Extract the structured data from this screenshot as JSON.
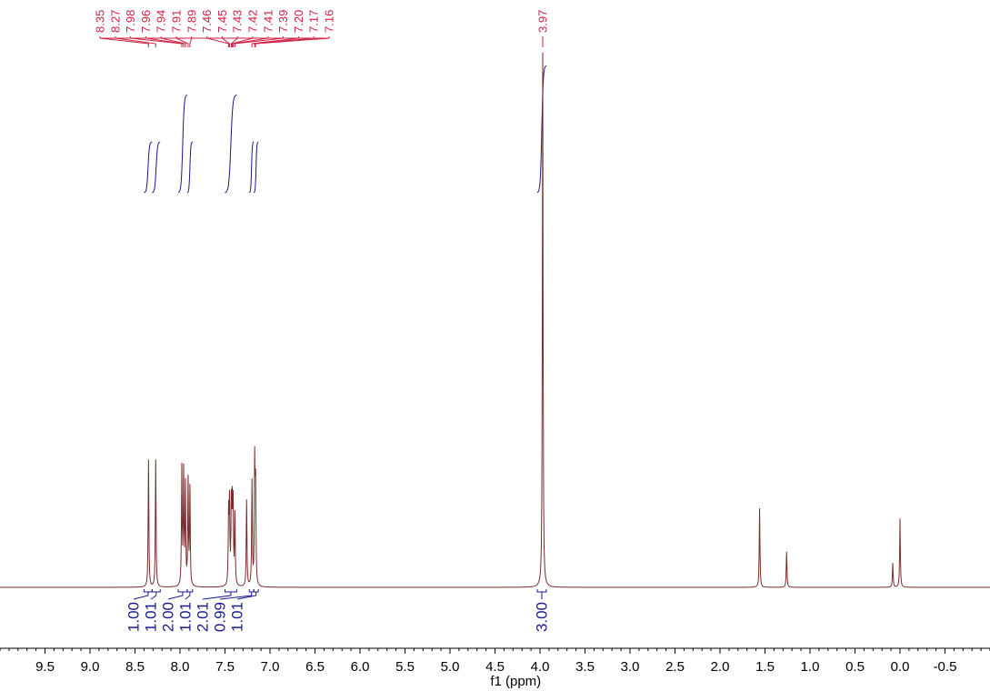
{
  "chart_data": {
    "type": "line",
    "title": "",
    "xlabel": "f1 (ppm)",
    "ylabel": "",
    "xlim": [
      10.0,
      -1.0
    ],
    "x_reversed": true,
    "grid": false,
    "x_ticks": [
      {
        "value": 9.5,
        "label": "9.5"
      },
      {
        "value": 9.0,
        "label": "9.0"
      },
      {
        "value": 8.5,
        "label": "8.5"
      },
      {
        "value": 8.0,
        "label": "8.0"
      },
      {
        "value": 7.5,
        "label": "7.5"
      },
      {
        "value": 7.0,
        "label": "7.0"
      },
      {
        "value": 6.5,
        "label": "6.5"
      },
      {
        "value": 6.0,
        "label": "6.0"
      },
      {
        "value": 5.5,
        "label": "5.5"
      },
      {
        "value": 5.0,
        "label": "5.0"
      },
      {
        "value": 4.5,
        "label": "4.5"
      },
      {
        "value": 4.0,
        "label": "4.0"
      },
      {
        "value": 3.5,
        "label": "3.5"
      },
      {
        "value": 3.0,
        "label": "3.0"
      },
      {
        "value": 2.5,
        "label": "2.5"
      },
      {
        "value": 2.0,
        "label": "2.0"
      },
      {
        "value": 1.5,
        "label": "1.5"
      },
      {
        "value": 1.0,
        "label": "1.0"
      },
      {
        "value": 0.5,
        "label": "0.5"
      },
      {
        "value": 0.0,
        "label": "0.0"
      },
      {
        "value": -0.5,
        "label": "-0.5"
      }
    ],
    "peaks": [
      {
        "ppm": 8.35,
        "height": 1.0
      },
      {
        "ppm": 8.27,
        "height": 1.0
      },
      {
        "ppm": 7.98,
        "height": 0.92
      },
      {
        "ppm": 7.96,
        "height": 0.88
      },
      {
        "ppm": 7.94,
        "height": 0.78
      },
      {
        "ppm": 7.91,
        "height": 0.82
      },
      {
        "ppm": 7.89,
        "height": 0.76
      },
      {
        "ppm": 7.46,
        "height": 0.55
      },
      {
        "ppm": 7.45,
        "height": 0.62
      },
      {
        "ppm": 7.43,
        "height": 0.6
      },
      {
        "ppm": 7.42,
        "height": 0.56
      },
      {
        "ppm": 7.41,
        "height": 0.6
      },
      {
        "ppm": 7.39,
        "height": 0.55
      },
      {
        "ppm": 7.26,
        "height": 0.68
      },
      {
        "ppm": 7.2,
        "height": 0.82
      },
      {
        "ppm": 7.17,
        "height": 0.96
      },
      {
        "ppm": 7.16,
        "height": 0.76
      },
      {
        "ppm": 3.97,
        "height": 4.2
      },
      {
        "ppm": 1.56,
        "height": 0.62
      },
      {
        "ppm": 1.26,
        "height": 0.28
      },
      {
        "ppm": 0.08,
        "height": 0.19
      },
      {
        "ppm": 0.0,
        "height": 0.54
      }
    ],
    "peak_labels": [
      "8.35",
      "8.27",
      "7.98",
      "7.96",
      "7.94",
      "7.91",
      "7.89",
      "7.46",
      "7.45",
      "7.43",
      "7.42",
      "7.41",
      "7.39",
      "7.20",
      "7.17",
      "7.16",
      "3.97"
    ],
    "integrals": [
      {
        "from": 8.4,
        "to": 8.31,
        "value": "1.00",
        "curve_height": 0.4
      },
      {
        "from": 8.31,
        "to": 8.22,
        "value": "1.01",
        "curve_height": 0.4
      },
      {
        "from": 8.02,
        "to": 7.92,
        "value": "2.00",
        "curve_height": 0.77
      },
      {
        "from": 7.92,
        "to": 7.86,
        "value": "1.01",
        "curve_height": 0.4
      },
      {
        "from": 7.5,
        "to": 7.37,
        "value": "2.01",
        "curve_height": 0.77
      },
      {
        "from": 7.23,
        "to": 7.18,
        "value": "0.99",
        "curve_height": 0.4
      },
      {
        "from": 7.18,
        "to": 7.13,
        "value": "1.01",
        "curve_height": 0.4
      },
      {
        "from": 4.03,
        "to": 3.93,
        "value": "3.00",
        "curve_height": 1.0
      }
    ],
    "colors": {
      "spectrum": "#7a2d2d",
      "peak_labels": "#cc2244",
      "integrals": "#1a1a8c",
      "axis": "#000000"
    }
  }
}
